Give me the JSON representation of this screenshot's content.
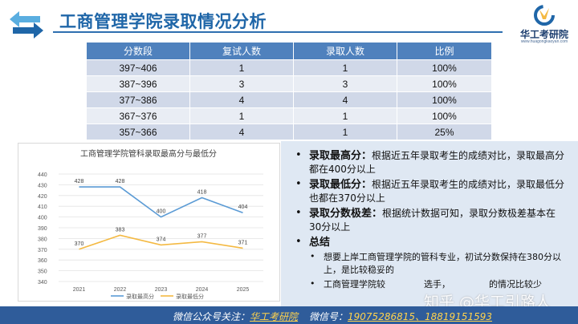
{
  "header": {
    "title": "工商管理学院录取情况分析",
    "icon": "double-arrow-icon",
    "logo": {
      "name": "华工考研院",
      "sub": "www.huagongkaoyan.com"
    }
  },
  "table": {
    "headers": [
      "分数段",
      "复试人数",
      "录取人数",
      "比例"
    ],
    "rows": [
      [
        "397~406",
        "1",
        "1",
        "100%"
      ],
      [
        "387~396",
        "3",
        "3",
        "100%"
      ],
      [
        "377~386",
        "4",
        "4",
        "100%"
      ],
      [
        "367~376",
        "1",
        "1",
        "100%"
      ],
      [
        "357~366",
        "4",
        "1",
        "25%"
      ]
    ],
    "colors": {
      "header": "#4f81bd",
      "odd": "#d0d8e8",
      "even": "#e9edf4"
    }
  },
  "chart_data": {
    "type": "line",
    "title": "工商管理学院管科录取最高分与最低分",
    "x": [
      "2021",
      "2022",
      "2023",
      "2024",
      "2025"
    ],
    "series": [
      {
        "name": "录取最高分",
        "values": [
          428,
          428,
          400,
          418,
          404
        ],
        "color": "#5b9bd5"
      },
      {
        "name": "录取最低分",
        "values": [
          370,
          383,
          374,
          377,
          371
        ],
        "color": "#f4b942"
      }
    ],
    "ylim": [
      340,
      440
    ],
    "yticks": [
      "340",
      "350",
      "360",
      "370",
      "380",
      "390",
      "400",
      "410",
      "420",
      "430",
      "440"
    ],
    "grid": true,
    "legend": "bottom"
  },
  "bullets": {
    "b1_title": "录取最高分：",
    "b1_text": "根据近五年录取考生的成绩对比，录取最高分都在400分以上",
    "b2_title": "录取最低分：",
    "b2_text": "根据近五年录取考生的成绩对比，录取最低分也都在370分以上",
    "b3_title": "录取分数极差：",
    "b3_text": "根据统计数据可知，录取分数极差基本在30分以上",
    "b4_title": "总结",
    "s1": "想要上岸工商管理学院的管科专业，初试分数保持在380分以上，是比较稳妥的",
    "s2a": "工商管理学院较",
    "s2b": "选手，",
    "s2c": "的情况比较少"
  },
  "watermark": "知乎 @华工引路人",
  "footer": {
    "left_label": "微信公众号关注：",
    "left_value": "华工考研院",
    "right_label": "微信号：",
    "right_value": "19075286815、18819151593"
  }
}
